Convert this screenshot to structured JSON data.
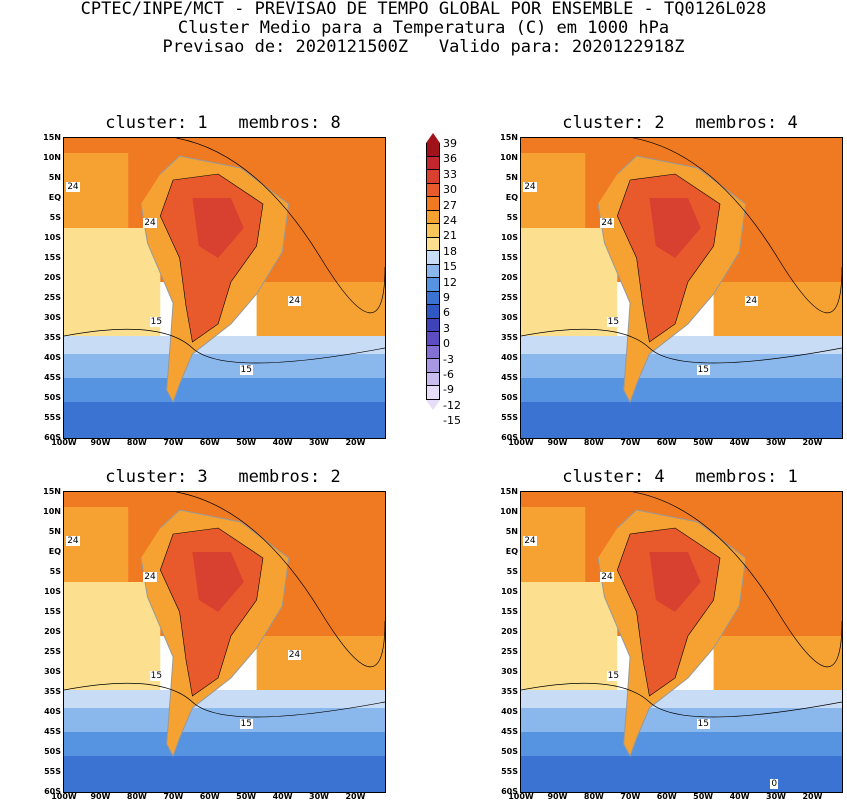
{
  "header": {
    "line1": "CPTEC/INPE/MCT - PREVISAO DE TEMPO GLOBAL POR ENSEMBLE - TQ0126L028",
    "line2": "Cluster Medio para a Temperatura (C) em 1000 hPa",
    "line3": "Previsao de: 2020121500Z   Valido para: 2020122918Z"
  },
  "lat_labels": [
    "15N",
    "10N",
    "5N",
    "EQ",
    "5S",
    "10S",
    "15S",
    "20S",
    "25S",
    "30S",
    "35S",
    "40S",
    "45S",
    "50S",
    "55S",
    "60S"
  ],
  "lon_labels": [
    "100W",
    "90W",
    "80W",
    "70W",
    "60W",
    "50W",
    "40W",
    "30W",
    "20W"
  ],
  "colorbar": {
    "levels": [
      "39",
      "36",
      "33",
      "30",
      "27",
      "24",
      "21",
      "18",
      "15",
      "12",
      "9",
      "6",
      "3",
      "0",
      "-3",
      "-6",
      "-9",
      "-12",
      "-15"
    ],
    "colors": [
      "#a0131b",
      "#c1272d",
      "#d8412f",
      "#e85a2b",
      "#f07a22",
      "#f5a233",
      "#f8c55a",
      "#fce08f",
      "#c9dcf5",
      "#8bb8ec",
      "#5693e0",
      "#3a73d2",
      "#2f58c4",
      "#3f43b7",
      "#5e4cc3",
      "#8470d3",
      "#a898e2",
      "#c9bdef",
      "#e6def8"
    ]
  },
  "panels": [
    {
      "title": "cluster: 1   membros: 8",
      "contours": [
        {
          "text": "24",
          "pos": "a"
        },
        {
          "text": "24",
          "pos": "b"
        },
        {
          "text": "24",
          "pos": "c"
        },
        {
          "text": "15",
          "pos": "d"
        },
        {
          "text": "15",
          "pos": "e"
        }
      ]
    },
    {
      "title": "cluster: 2   membros: 4",
      "contours": [
        {
          "text": "24",
          "pos": "a"
        },
        {
          "text": "24",
          "pos": "b"
        },
        {
          "text": "24",
          "pos": "c"
        },
        {
          "text": "15",
          "pos": "d"
        },
        {
          "text": "15",
          "pos": "e"
        }
      ]
    },
    {
      "title": "cluster: 3   membros: 2",
      "contours": [
        {
          "text": "24",
          "pos": "a"
        },
        {
          "text": "24",
          "pos": "b"
        },
        {
          "text": "24",
          "pos": "c"
        },
        {
          "text": "15",
          "pos": "d"
        },
        {
          "text": "15",
          "pos": "e"
        }
      ]
    },
    {
      "title": "cluster: 4   membros: 1",
      "contours": [
        {
          "text": "24",
          "pos": "a"
        },
        {
          "text": "24",
          "pos": "b"
        },
        {
          "text": "15",
          "pos": "d"
        },
        {
          "text": "15",
          "pos": "e"
        },
        {
          "text": "0",
          "pos": "f"
        }
      ]
    }
  ]
}
